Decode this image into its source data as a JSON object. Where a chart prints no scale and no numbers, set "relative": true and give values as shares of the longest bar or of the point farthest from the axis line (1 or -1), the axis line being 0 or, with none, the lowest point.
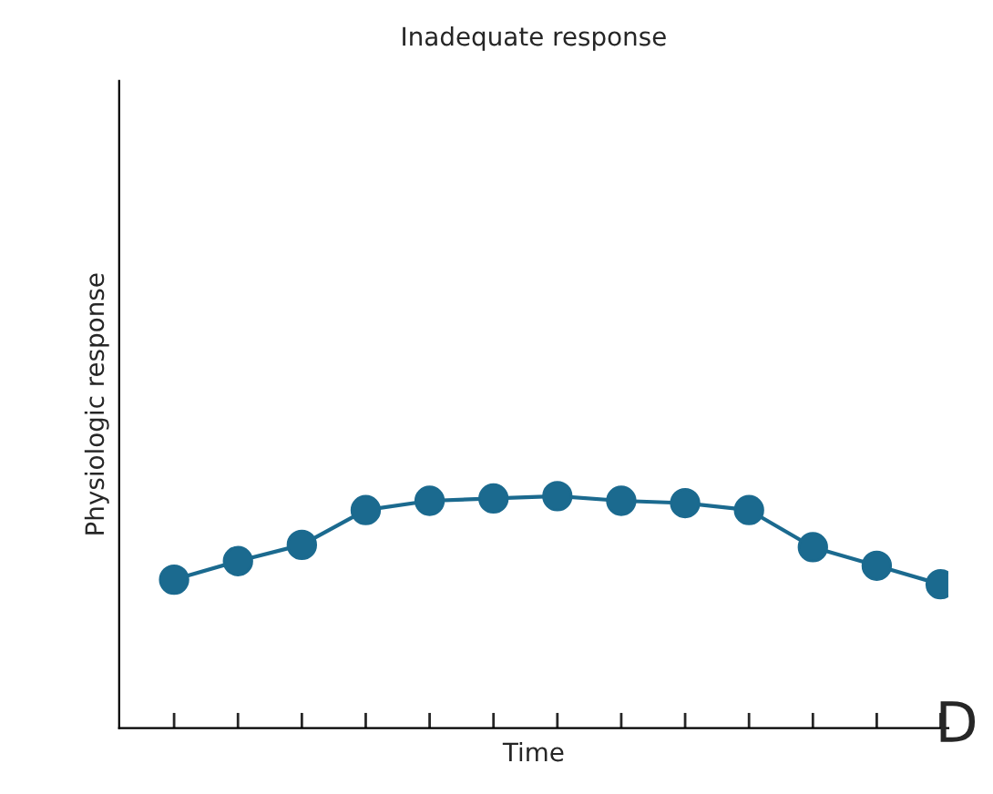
{
  "chart_data": {
    "type": "line",
    "title": "Inadequate response",
    "xlabel": "Time",
    "ylabel": "Physiologic response",
    "categories": [
      null,
      null,
      null,
      null,
      null,
      null,
      null,
      null,
      null,
      null,
      null,
      null,
      null
    ],
    "relative": true,
    "series": [
      {
        "color": "#1b6a8f",
        "values": [
          0.64,
          0.72,
          0.79,
          0.94,
          0.98,
          0.99,
          1.0,
          0.98,
          0.97,
          0.94,
          0.78,
          0.7,
          0.62
        ]
      }
    ],
    "marker": "circle",
    "line_style": "solid",
    "grid": false,
    "legend": false,
    "annotations": [
      "D"
    ]
  }
}
